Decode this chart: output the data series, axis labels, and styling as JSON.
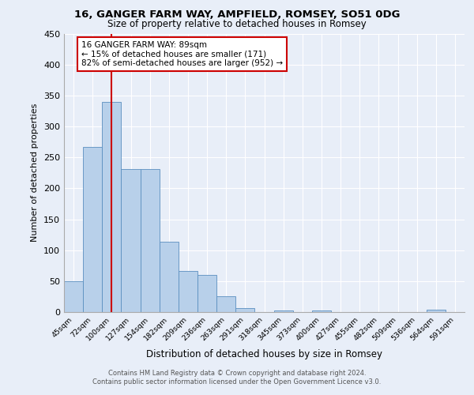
{
  "title1": "16, GANGER FARM WAY, AMPFIELD, ROMSEY, SO51 0DG",
  "title2": "Size of property relative to detached houses in Romsey",
  "xlabel": "Distribution of detached houses by size in Romsey",
  "ylabel": "Number of detached properties",
  "bar_labels": [
    "45sqm",
    "72sqm",
    "100sqm",
    "127sqm",
    "154sqm",
    "182sqm",
    "209sqm",
    "236sqm",
    "263sqm",
    "291sqm",
    "318sqm",
    "345sqm",
    "373sqm",
    "400sqm",
    "427sqm",
    "455sqm",
    "482sqm",
    "509sqm",
    "536sqm",
    "564sqm",
    "591sqm"
  ],
  "bar_values": [
    50,
    267,
    340,
    231,
    231,
    114,
    67,
    60,
    25,
    6,
    0,
    3,
    0,
    3,
    0,
    0,
    0,
    0,
    0,
    4,
    0
  ],
  "bar_color": "#b8d0ea",
  "bar_edge_color": "#5a8fc0",
  "vline_x": 2.0,
  "vline_color": "#cc0000",
  "annotation_text": "16 GANGER FARM WAY: 89sqm\n← 15% of detached houses are smaller (171)\n82% of semi-detached houses are larger (952) →",
  "annotation_box_color": "#ffffff",
  "annotation_box_edge": "#cc0000",
  "ylim": [
    0,
    450
  ],
  "yticks": [
    0,
    50,
    100,
    150,
    200,
    250,
    300,
    350,
    400,
    450
  ],
  "footer": "Contains HM Land Registry data © Crown copyright and database right 2024.\nContains public sector information licensed under the Open Government Licence v3.0.",
  "bg_color": "#e8eef8",
  "plot_bg_color": "#e8eef8",
  "grid_color": "#ffffff"
}
